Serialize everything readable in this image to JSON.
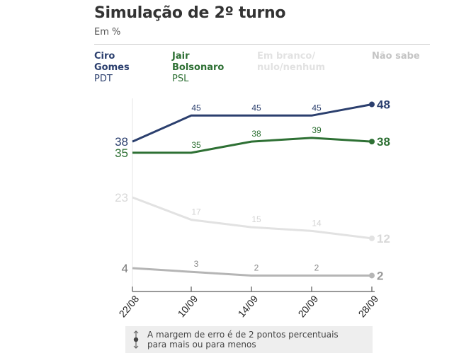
{
  "header": {
    "title": "Simulação de 2º turno",
    "subtitle": "Em %"
  },
  "legend": [
    {
      "name": "Ciro\nGomes",
      "party": "PDT",
      "color": "#2b3f6e"
    },
    {
      "name": "Jair\nBolsonaro",
      "party": "PSL",
      "color": "#2e7034"
    },
    {
      "name": "Em branco/\nnulo/nenhum",
      "party": "",
      "color": "#e2e2e2"
    },
    {
      "name": "Não sabe",
      "party": "",
      "color": "#c4c4c4"
    }
  ],
  "chart_data": {
    "type": "line",
    "title": "Simulação de 2º turno",
    "subtitle": "Em %",
    "categories": [
      "22/08",
      "10/09",
      "14/09",
      "20/09",
      "28/09"
    ],
    "ylim": [
      0,
      50
    ],
    "series": [
      {
        "name": "Ciro Gomes",
        "values": [
          38,
          45,
          45,
          45,
          48
        ],
        "color": "#2b3f6e",
        "bold_end": true
      },
      {
        "name": "Jair Bolsonaro",
        "values": [
          35,
          35,
          38,
          39,
          38
        ],
        "color": "#2e7034",
        "bold_end": true
      },
      {
        "name": "Em branco/nulo/nenhum",
        "values": [
          23,
          17,
          15,
          14,
          12
        ],
        "color": "#e2e2e2",
        "bold_end": true
      },
      {
        "name": "Não sabe",
        "values": [
          4,
          3,
          2,
          2,
          2
        ],
        "color": "#b5b5b5",
        "bold_end": true
      }
    ]
  },
  "note": {
    "line1": "A margem de erro é de 2 pontos percentuais",
    "line2": "para mais ou para menos"
  }
}
